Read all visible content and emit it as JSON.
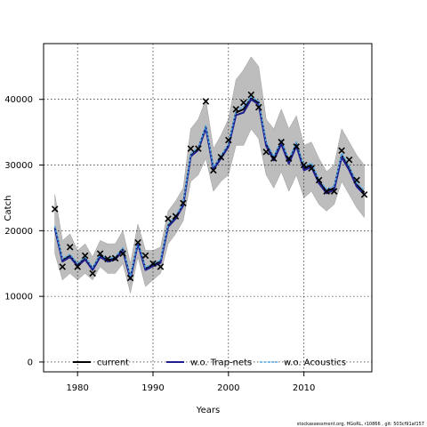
{
  "chart_data": {
    "type": "line",
    "title": "",
    "xlabel": "Years",
    "ylabel": "Catch",
    "xlim": [
      1975.5,
      2019.0
    ],
    "ylim": [
      -1500,
      48500
    ],
    "xticks": [
      1980,
      1990,
      2000,
      2010
    ],
    "yticks": [
      0,
      10000,
      20000,
      30000,
      40000
    ],
    "grid": true,
    "legend_position": "bottom",
    "colors": {
      "band": "#bdbdbd",
      "current": "#000000",
      "trapnets": "#1f1f8f",
      "acoustics": "#4da6e8",
      "observed": "#000000"
    },
    "years": [
      1977,
      1978,
      1979,
      1980,
      1981,
      1982,
      1983,
      1984,
      1985,
      1986,
      1987,
      1988,
      1989,
      1990,
      1991,
      1992,
      1993,
      1994,
      1995,
      1996,
      1997,
      1998,
      1999,
      2000,
      2001,
      2002,
      2003,
      2004,
      2005,
      2006,
      2007,
      2008,
      2009,
      2010,
      2011,
      2012,
      2013,
      2014,
      2015,
      2016,
      2017,
      2018
    ],
    "band_upper": [
      25500,
      18500,
      19500,
      17000,
      18000,
      16000,
      18500,
      18000,
      18000,
      20000,
      15000,
      21000,
      17000,
      17000,
      17500,
      23000,
      24500,
      26500,
      35500,
      37000,
      40000,
      32500,
      34500,
      37000,
      43000,
      44500,
      46500,
      45000,
      37000,
      35500,
      38500,
      35500,
      37500,
      33000,
      33500,
      31000,
      29000,
      30000,
      35500,
      33500,
      31500,
      30000
    ],
    "band_lower": [
      16500,
      12500,
      13500,
      12500,
      13500,
      12500,
      14500,
      13500,
      13500,
      15000,
      10500,
      16000,
      11500,
      12500,
      13500,
      18000,
      19500,
      21500,
      27500,
      28500,
      31000,
      26000,
      27500,
      28500,
      33000,
      33000,
      35500,
      34000,
      28500,
      26500,
      29000,
      26000,
      28500,
      25000,
      26000,
      24000,
      23000,
      24000,
      27500,
      25500,
      23500,
      22000
    ],
    "series": [
      {
        "name": "current",
        "values": [
          20500,
          15500,
          16200,
          14800,
          15800,
          14200,
          16200,
          15500,
          15800,
          17200,
          12800,
          18200,
          14200,
          14800,
          15300,
          20800,
          22000,
          24000,
          31500,
          32500,
          35800,
          29500,
          31200,
          33000,
          38000,
          38500,
          40200,
          39500,
          33200,
          31000,
          33500,
          30500,
          33200,
          29500,
          30000,
          27500,
          26000,
          26500,
          31500,
          29500,
          27000,
          25800
        ]
      },
      {
        "name": "w.o. Trap-nets",
        "values": [
          20300,
          15300,
          16000,
          14600,
          15600,
          14000,
          16000,
          15300,
          15600,
          17000,
          12600,
          18000,
          14000,
          14600,
          15100,
          20600,
          21800,
          23800,
          31300,
          32300,
          35600,
          29300,
          31000,
          32800,
          37600,
          38000,
          40000,
          39200,
          32900,
          30700,
          33200,
          30200,
          32900,
          29200,
          29700,
          27200,
          25700,
          26200,
          31200,
          29200,
          26700,
          25500
        ]
      },
      {
        "name": "w.o. Acoustics",
        "values": [
          20700,
          15700,
          16400,
          15000,
          16000,
          14400,
          16400,
          15700,
          16000,
          17400,
          13000,
          18400,
          14400,
          15000,
          15500,
          21000,
          22200,
          24200,
          31700,
          32700,
          36000,
          29700,
          31400,
          33200,
          38300,
          38900,
          40400,
          39700,
          33500,
          31300,
          33800,
          30800,
          33500,
          29800,
          30300,
          27800,
          26300,
          26800,
          31800,
          29800,
          27300,
          26100
        ]
      }
    ],
    "observed": [
      23300,
      14500,
      17500,
      14500,
      16200,
      13500,
      16500,
      15700,
      15800,
      16500,
      12800,
      18200,
      16200,
      15000,
      14500,
      21800,
      22200,
      24200,
      32500,
      32500,
      39700,
      29200,
      31200,
      33800,
      38500,
      39500,
      40700,
      38800,
      32000,
      31000,
      33500,
      31000,
      32800,
      30000,
      29500,
      27700,
      26000,
      26000,
      32200,
      30800,
      27700,
      25500
    ],
    "caption": "stockassessment.org, HGoRL, r10866 , git: 503cf91af157"
  }
}
